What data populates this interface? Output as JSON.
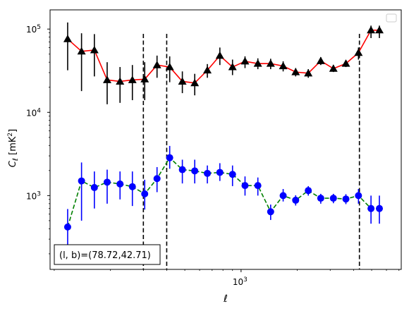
{
  "chart_data": {
    "type": "line",
    "xlabel": "ℓ",
    "ylabel_main": "C",
    "ylabel_sub": "ℓ",
    "ylabel_unit_open": "[mK",
    "ylabel_unit_sup": "2",
    "ylabel_unit_close": "]",
    "xscale": "log",
    "yscale": "log",
    "xlim": [
      95,
      7200
    ],
    "ylim": [
      130,
      170000
    ],
    "x_ticks": [
      {
        "value": 1000,
        "base": "10",
        "exp": "3"
      }
    ],
    "y_ticks": [
      {
        "value": 1000,
        "base": "10",
        "exp": "3"
      },
      {
        "value": 10000,
        "base": "10",
        "exp": "4"
      },
      {
        "value": 100000,
        "base": "10",
        "exp": "5"
      }
    ],
    "vlines": [
      300,
      400,
      4300
    ],
    "annotation": "(l, b)=(78.72,42.71)",
    "legend_placement": "top-right (empty)",
    "grid": false,
    "series": [
      {
        "color": "#ff0000",
        "linestyle": "solid",
        "marker": "triangle",
        "marker_color": "#000000",
        "errorbar_color": "#000000",
        "x": [
          118,
          140,
          164,
          192,
          225,
          262,
          305,
          355,
          415,
          485,
          565,
          660,
          770,
          900,
          1050,
          1230,
          1440,
          1680,
          1960,
          2290,
          2670,
          3120,
          3640,
          4250,
          4960,
          5500
        ],
        "y": [
          76000,
          54000,
          56000,
          24500,
          23500,
          24500,
          25000,
          37000,
          35000,
          23500,
          22500,
          32000,
          48000,
          35000,
          41000,
          38500,
          38500,
          36000,
          30500,
          29500,
          41500,
          33500,
          38500,
          52000,
          97000,
          97000
        ],
        "yerr_low": [
          32000,
          18000,
          27000,
          12500,
          13000,
          14000,
          14000,
          26000,
          23000,
          17000,
          16000,
          26000,
          37000,
          28000,
          34000,
          33000,
          33000,
          31000,
          27000,
          26000,
          37000,
          30500,
          35000,
          43000,
          78000,
          78000
        ],
        "yerr_high": [
          120000,
          89000,
          87000,
          40000,
          35000,
          37000,
          40000,
          48000,
          47000,
          31000,
          29000,
          38000,
          60000,
          43000,
          47000,
          44500,
          44000,
          41000,
          34000,
          33000,
          46000,
          37000,
          42000,
          60000,
          110000,
          110000
        ]
      },
      {
        "color": "#008000",
        "linestyle": "dashed",
        "marker": "circle",
        "marker_color": "#0000ff",
        "errorbar_color": "#0000ff",
        "x": [
          118,
          140,
          164,
          192,
          225,
          262,
          305,
          355,
          415,
          485,
          565,
          660,
          770,
          900,
          1050,
          1230,
          1440,
          1680,
          1960,
          2290,
          2670,
          3120,
          3640,
          4250,
          4960,
          5500
        ],
        "y": [
          420,
          1500,
          1250,
          1450,
          1380,
          1280,
          1050,
          1600,
          2850,
          2050,
          1980,
          1850,
          1900,
          1800,
          1320,
          1320,
          640,
          1000,
          880,
          1150,
          930,
          930,
          910,
          1000,
          700,
          700
        ],
        "yerr_low": [
          200,
          500,
          700,
          800,
          900,
          750,
          680,
          1100,
          2100,
          1400,
          1400,
          1400,
          1500,
          1300,
          1000,
          1000,
          510,
          850,
          760,
          1000,
          800,
          810,
          790,
          800,
          460,
          460
        ],
        "yerr_high": [
          690,
          2500,
          1950,
          2050,
          1950,
          1950,
          1550,
          2200,
          3950,
          2700,
          2700,
          2300,
          2450,
          2300,
          1700,
          1650,
          780,
          1200,
          1010,
          1300,
          1050,
          1050,
          1040,
          1200,
          1000,
          1000
        ]
      }
    ]
  }
}
